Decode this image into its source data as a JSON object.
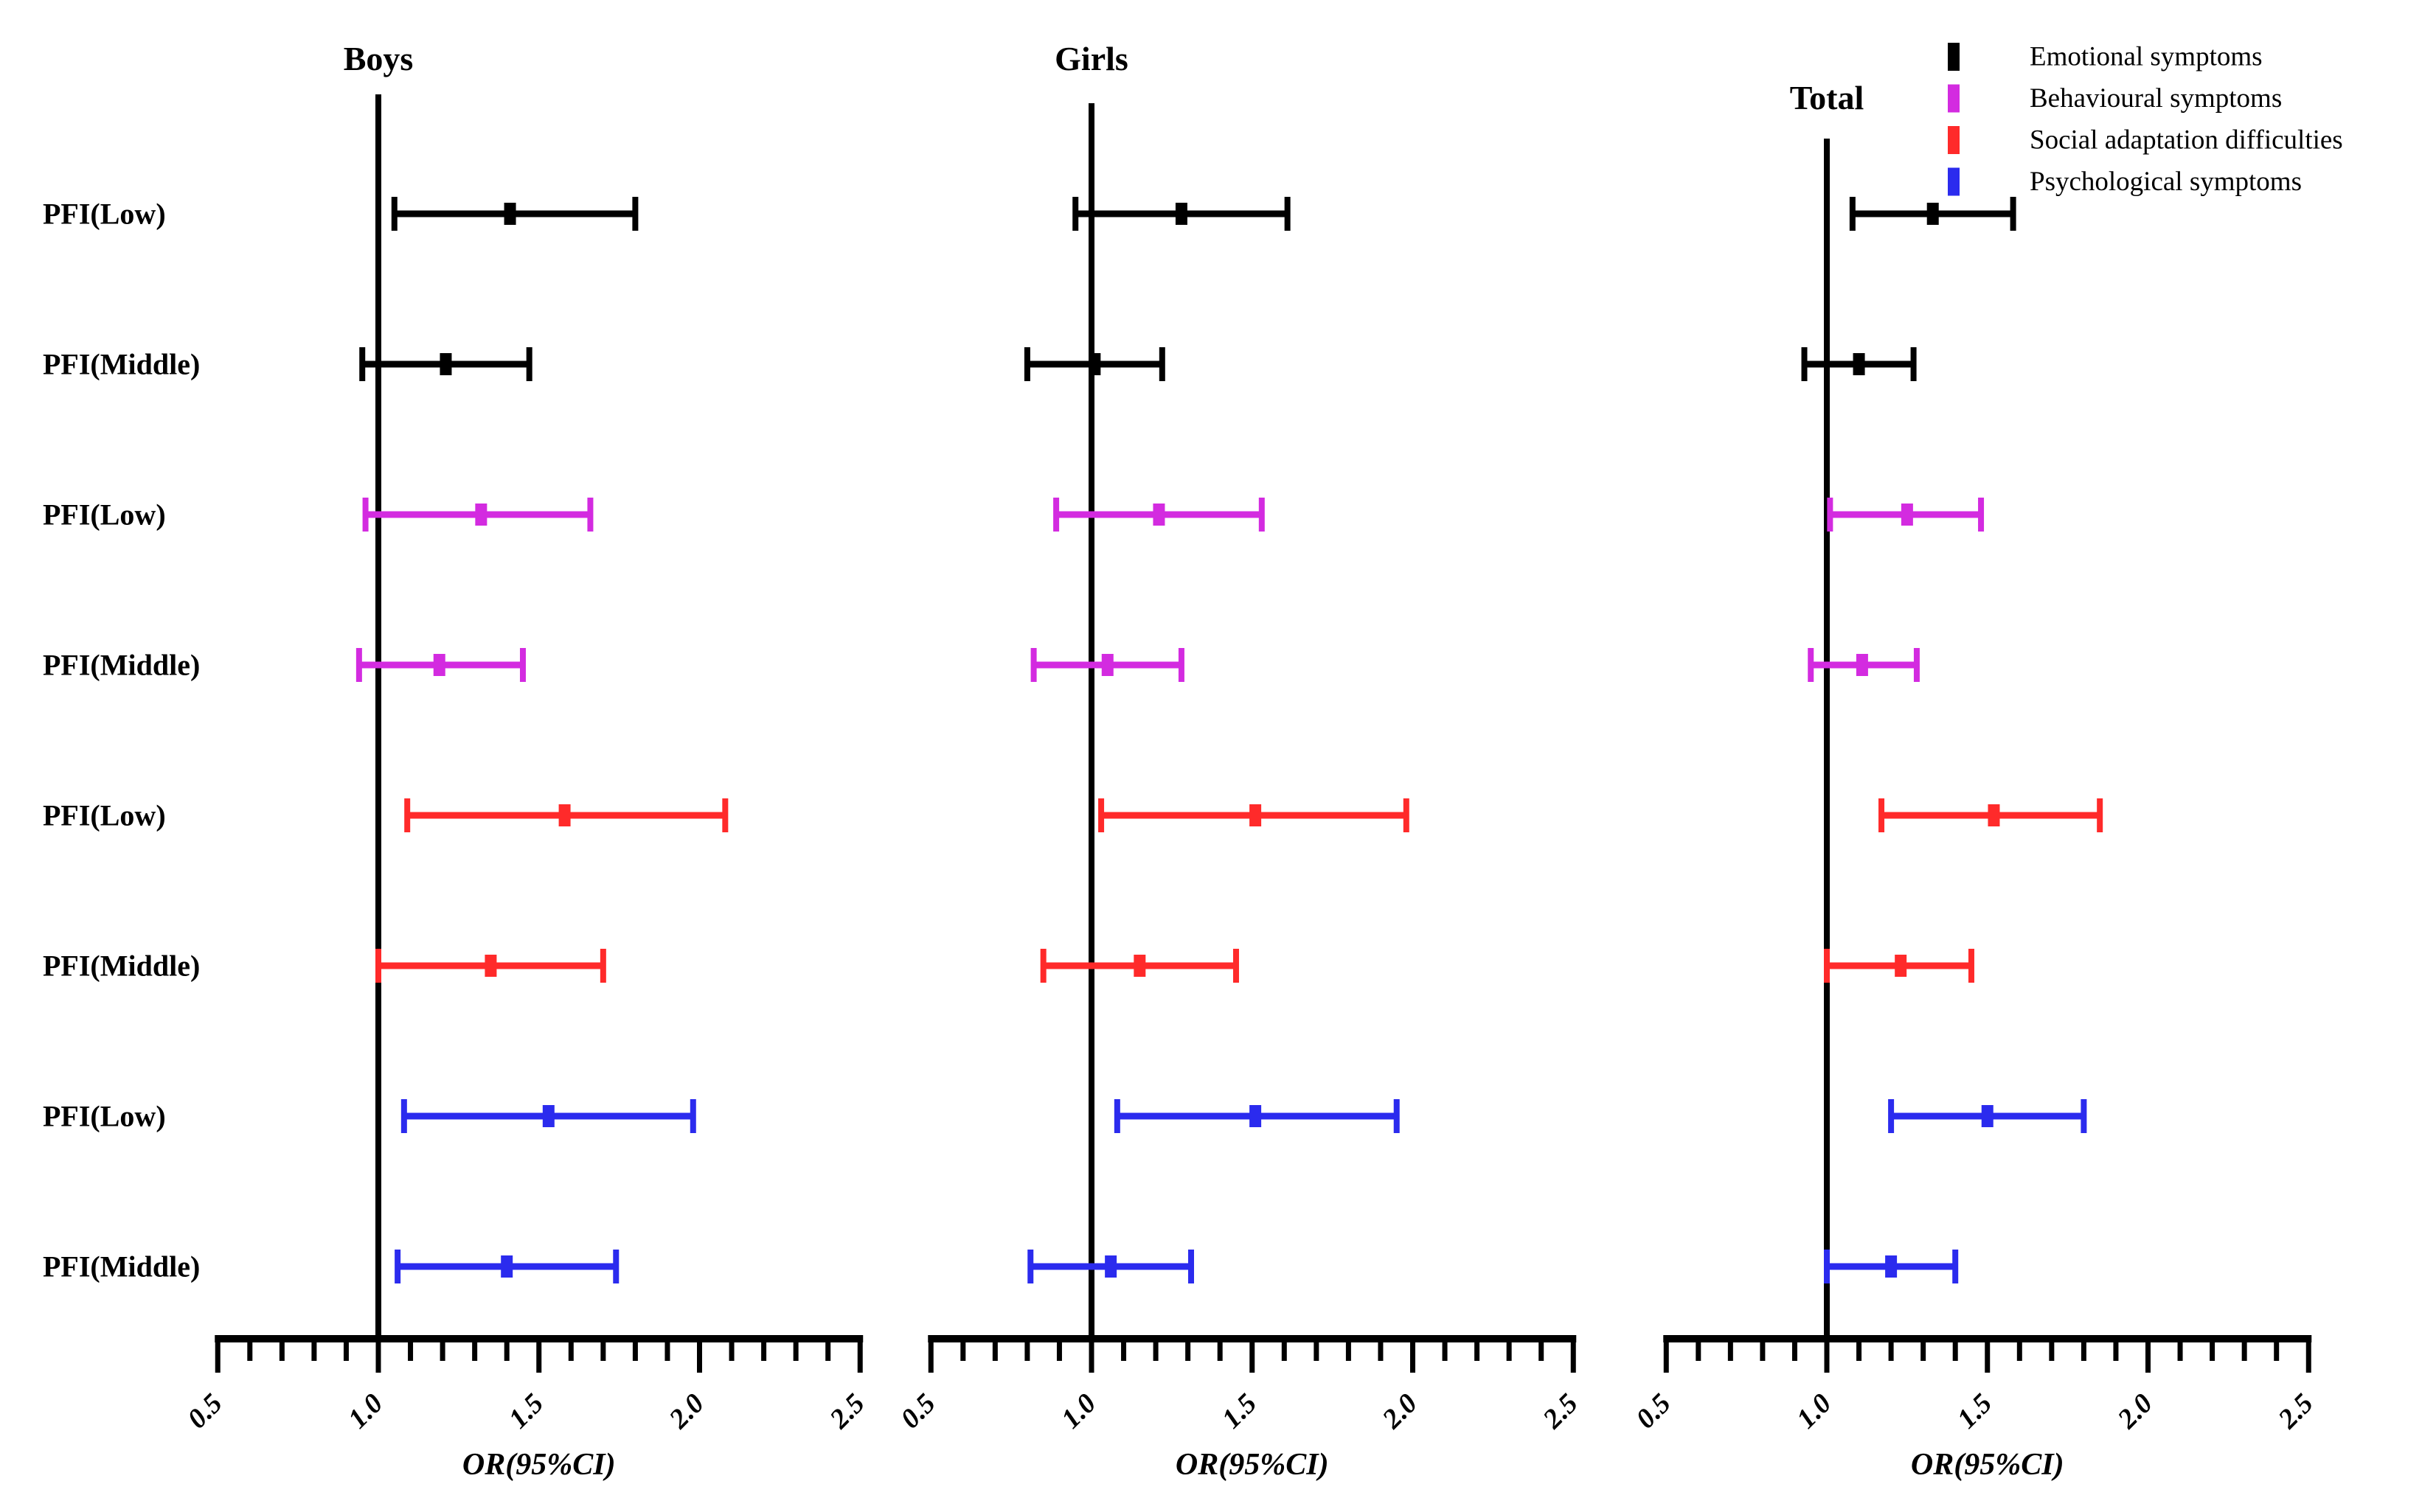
{
  "figure": {
    "background": "#ffffff",
    "foreground": "#000000"
  },
  "chart_data": {
    "type": "scatter",
    "variant": "forest-plot-with-error-bars",
    "xlabel": "OR(95%CI)",
    "xlim": [
      0.5,
      2.5
    ],
    "x_major_ticks": [
      "0.5",
      "1.0",
      "1.5",
      "2.0",
      "2.5"
    ],
    "x_major_tick_values": [
      0.5,
      1.0,
      1.5,
      2.0,
      2.5
    ],
    "x_minor_tick_step": 0.1,
    "reference_line_x": 1.0,
    "grid": false,
    "legend_position": "top-right",
    "row_labels": [
      "PFI(Low)",
      "PFI(Middle)",
      "PFI(Low)",
      "PFI(Middle)",
      "PFI(Low)",
      "PFI(Middle)",
      "PFI(Low)",
      "PFI(Middle)"
    ],
    "legend": [
      {
        "label": "Emotional symptoms",
        "color": "#000000"
      },
      {
        "label": "Behavioural symptoms",
        "color": "#D32BE0"
      },
      {
        "label": "Social adaptation difficulties",
        "color": "#FF2A2A"
      },
      {
        "label": "Psychological symptoms",
        "color": "#2B2BEE"
      }
    ],
    "panels": [
      {
        "title": "Boys",
        "rows": [
          {
            "label": "PFI(Low)",
            "series": "Emotional symptoms",
            "or": 1.41,
            "ci_low": 1.05,
            "ci_high": 1.8
          },
          {
            "label": "PFI(Middle)",
            "series": "Emotional symptoms",
            "or": 1.21,
            "ci_low": 0.95,
            "ci_high": 1.47
          },
          {
            "label": "PFI(Low)",
            "series": "Behavioural symptoms",
            "or": 1.32,
            "ci_low": 0.96,
            "ci_high": 1.66
          },
          {
            "label": "PFI(Middle)",
            "series": "Behavioural symptoms",
            "or": 1.19,
            "ci_low": 0.94,
            "ci_high": 1.45
          },
          {
            "label": "PFI(Low)",
            "series": "Social adaptation difficulties",
            "or": 1.58,
            "ci_low": 1.09,
            "ci_high": 2.08
          },
          {
            "label": "PFI(Middle)",
            "series": "Social adaptation difficulties",
            "or": 1.35,
            "ci_low": 1.0,
            "ci_high": 1.7
          },
          {
            "label": "PFI(Low)",
            "series": "Psychological symptoms",
            "or": 1.53,
            "ci_low": 1.08,
            "ci_high": 1.98
          },
          {
            "label": "PFI(Middle)",
            "series": "Psychological symptoms",
            "or": 1.4,
            "ci_low": 1.06,
            "ci_high": 1.74
          }
        ]
      },
      {
        "title": "Girls",
        "rows": [
          {
            "label": "PFI(Low)",
            "series": "Emotional symptoms",
            "or": 1.28,
            "ci_low": 0.95,
            "ci_high": 1.61
          },
          {
            "label": "PFI(Middle)",
            "series": "Emotional symptoms",
            "or": 1.01,
            "ci_low": 0.8,
            "ci_high": 1.22
          },
          {
            "label": "PFI(Low)",
            "series": "Behavioural symptoms",
            "or": 1.21,
            "ci_low": 0.89,
            "ci_high": 1.53
          },
          {
            "label": "PFI(Middle)",
            "series": "Behavioural symptoms",
            "or": 1.05,
            "ci_low": 0.82,
            "ci_high": 1.28
          },
          {
            "label": "PFI(Low)",
            "series": "Social adaptation difficulties",
            "or": 1.51,
            "ci_low": 1.03,
            "ci_high": 1.98
          },
          {
            "label": "PFI(Middle)",
            "series": "Social adaptation difficulties",
            "or": 1.15,
            "ci_low": 0.85,
            "ci_high": 1.45
          },
          {
            "label": "PFI(Low)",
            "series": "Psychological symptoms",
            "or": 1.51,
            "ci_low": 1.08,
            "ci_high": 1.95
          },
          {
            "label": "PFI(Middle)",
            "series": "Psychological symptoms",
            "or": 1.06,
            "ci_low": 0.81,
            "ci_high": 1.31
          }
        ]
      },
      {
        "title": "Total",
        "rows": [
          {
            "label": "PFI(Low)",
            "series": "Emotional symptoms",
            "or": 1.33,
            "ci_low": 1.08,
            "ci_high": 1.58
          },
          {
            "label": "PFI(Middle)",
            "series": "Emotional symptoms",
            "or": 1.1,
            "ci_low": 0.93,
            "ci_high": 1.27
          },
          {
            "label": "PFI(Low)",
            "series": "Behavioural symptoms",
            "or": 1.25,
            "ci_low": 1.01,
            "ci_high": 1.48
          },
          {
            "label": "PFI(Middle)",
            "series": "Behavioural symptoms",
            "or": 1.11,
            "ci_low": 0.95,
            "ci_high": 1.28
          },
          {
            "label": "PFI(Low)",
            "series": "Social adaptation difficulties",
            "or": 1.52,
            "ci_low": 1.17,
            "ci_high": 1.85
          },
          {
            "label": "PFI(Middle)",
            "series": "Social adaptation difficulties",
            "or": 1.23,
            "ci_low": 1.0,
            "ci_high": 1.45
          },
          {
            "label": "PFI(Low)",
            "series": "Psychological symptoms",
            "or": 1.5,
            "ci_low": 1.2,
            "ci_high": 1.8
          },
          {
            "label": "PFI(Middle)",
            "series": "Psychological symptoms",
            "or": 1.2,
            "ci_low": 1.0,
            "ci_high": 1.4
          }
        ]
      }
    ]
  }
}
